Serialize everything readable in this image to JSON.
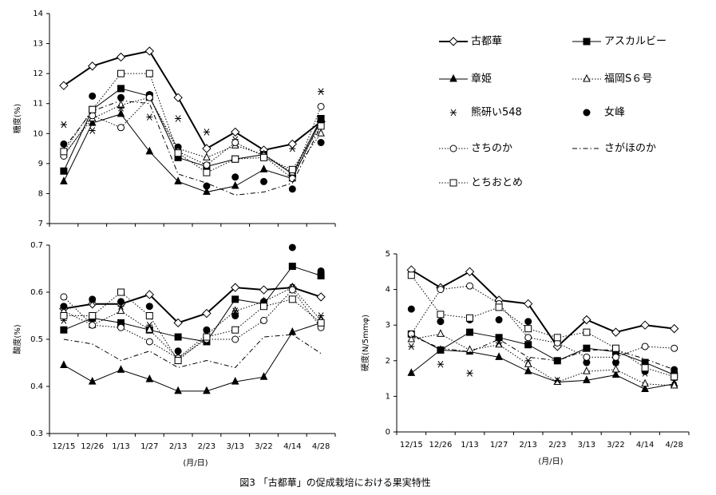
{
  "caption": "図3 「古都華」の促成栽培における果実特性",
  "chart_data": [
    {
      "type": "line",
      "y_label": "糖度(%)",
      "ylim": [
        7,
        14
      ],
      "yticks": [
        7,
        8,
        9,
        10,
        11,
        12,
        13,
        14
      ],
      "color": "#000000",
      "series": [
        {
          "name": "古都華",
          "marker": "diamond-open",
          "line": "bold",
          "values": [
            11.6,
            12.25,
            12.55,
            12.75,
            11.2,
            9.5,
            10.05,
            9.45,
            9.65,
            10.4
          ]
        },
        {
          "name": "アスカルビー",
          "marker": "square",
          "line": "solid",
          "values": [
            8.75,
            10.8,
            11.5,
            11.25,
            9.2,
            8.9,
            9.15,
            9.3,
            8.65,
            10.5
          ]
        },
        {
          "name": "章姫",
          "marker": "triangle",
          "line": "solid",
          "values": [
            8.4,
            10.35,
            10.65,
            9.4,
            8.4,
            8.05,
            8.25,
            8.8,
            8.5,
            10.45
          ]
        },
        {
          "name": "福岡S６号",
          "marker": "triangle-open",
          "line": "dotted",
          "values": [
            9.3,
            10.5,
            10.95,
            11.2,
            9.5,
            9.2,
            9.6,
            9.3,
            8.7,
            10.0
          ]
        },
        {
          "name": "熊研い548",
          "marker": "asterisk",
          "line": "none",
          "values": [
            10.3,
            10.1,
            10.85,
            10.55,
            10.5,
            10.05,
            9.8,
            9.3,
            9.5,
            11.4
          ]
        },
        {
          "name": "女峰",
          "marker": "circle",
          "line": "none",
          "values": [
            9.65,
            11.25,
            11.2,
            11.3,
            9.55,
            8.25,
            8.55,
            8.4,
            8.15,
            9.7
          ]
        },
        {
          "name": "さちのか",
          "marker": "circle-open",
          "line": "dotted",
          "values": [
            9.25,
            10.6,
            10.2,
            11.2,
            9.4,
            8.95,
            9.7,
            9.25,
            8.5,
            10.9
          ]
        },
        {
          "name": "さがほのか",
          "marker": "none",
          "line": "dashdot",
          "values": [
            9.5,
            10.75,
            11.1,
            11.0,
            8.65,
            8.35,
            7.95,
            8.05,
            8.35,
            10.25
          ]
        },
        {
          "name": "とちおとめ",
          "marker": "square-open",
          "line": "dotted",
          "values": [
            9.4,
            10.8,
            12.0,
            12.0,
            9.35,
            8.7,
            9.15,
            9.2,
            8.8,
            10.25
          ]
        }
      ]
    },
    {
      "type": "line",
      "y_label": "酸度(%)",
      "x_label": "(月/日)",
      "ylim": [
        0.3,
        0.7
      ],
      "yticks": [
        0.3,
        0.4,
        0.5,
        0.6,
        0.7
      ],
      "color": "#000000",
      "categories": [
        "12/15",
        "12/26",
        "1/13",
        "1/27",
        "2/13",
        "2/23",
        "3/13",
        "3/22",
        "4/14",
        "4/28"
      ],
      "series": [
        {
          "marker": "diamond-open",
          "line": "bold",
          "values": [
            0.565,
            0.575,
            0.575,
            0.595,
            0.535,
            0.555,
            0.61,
            0.605,
            0.61,
            0.59
          ]
        },
        {
          "marker": "square",
          "line": "solid",
          "values": [
            0.52,
            0.545,
            0.535,
            0.52,
            0.505,
            0.495,
            0.585,
            0.575,
            0.655,
            0.635
          ]
        },
        {
          "marker": "triangle",
          "line": "solid",
          "values": [
            0.445,
            0.41,
            0.435,
            0.415,
            0.39,
            0.39,
            0.41,
            0.42,
            0.515,
            0.535
          ]
        },
        {
          "marker": "triangle-open",
          "line": "dotted",
          "values": [
            0.56,
            0.53,
            0.56,
            0.52,
            0.46,
            0.51,
            0.56,
            0.58,
            0.61,
            0.54
          ]
        },
        {
          "marker": "asterisk",
          "line": "none",
          "values": [
            0.54,
            0.58,
            0.57,
            0.53,
            0.465,
            0.515,
            0.56,
            0.575,
            0.61,
            0.55
          ]
        },
        {
          "marker": "circle",
          "line": "none",
          "values": [
            0.57,
            0.585,
            0.58,
            0.57,
            0.475,
            0.52,
            0.55,
            0.58,
            0.695,
            0.645
          ]
        },
        {
          "marker": "circle-open",
          "line": "dotted",
          "values": [
            0.59,
            0.53,
            0.525,
            0.495,
            0.46,
            0.5,
            0.5,
            0.54,
            0.605,
            0.525
          ]
        },
        {
          "marker": "none",
          "line": "dashdot",
          "values": [
            0.5,
            0.49,
            0.455,
            0.475,
            0.44,
            0.455,
            0.44,
            0.505,
            0.51,
            0.47
          ]
        },
        {
          "marker": "square-open",
          "line": "dotted",
          "values": [
            0.55,
            0.55,
            0.6,
            0.55,
            0.455,
            0.505,
            0.52,
            0.57,
            0.585,
            0.535
          ]
        }
      ]
    },
    {
      "type": "line",
      "y_label": "硬度(N/5mmφ)",
      "x_label": "(月/日)",
      "ylim": [
        0,
        5
      ],
      "yticks": [
        0,
        1,
        2,
        3,
        4,
        5
      ],
      "color": "#000000",
      "categories": [
        "12/15",
        "12/26",
        "1/13",
        "1/27",
        "2/13",
        "2/23",
        "3/13",
        "3/22",
        "4/14",
        "4/28"
      ],
      "series": [
        {
          "marker": "diamond-open",
          "line": "bold",
          "values": [
            4.55,
            4.05,
            4.5,
            3.7,
            3.6,
            2.4,
            3.15,
            2.8,
            3.0,
            2.9
          ]
        },
        {
          "marker": "square",
          "line": "solid",
          "values": [
            2.75,
            2.3,
            2.8,
            2.65,
            2.45,
            2.0,
            2.35,
            2.25,
            1.95,
            1.6
          ]
        },
        {
          "marker": "triangle",
          "line": "solid",
          "values": [
            1.65,
            2.3,
            2.25,
            2.1,
            1.7,
            1.4,
            1.45,
            1.6,
            1.2,
            1.35
          ]
        },
        {
          "marker": "triangle-open",
          "line": "dotted",
          "values": [
            2.6,
            2.75,
            2.3,
            2.45,
            1.9,
            1.4,
            1.7,
            1.75,
            1.35,
            1.3
          ]
        },
        {
          "marker": "asterisk",
          "line": "none",
          "values": [
            2.4,
            1.9,
            1.65,
            2.5,
            2.0,
            1.45,
            2.05,
            1.95,
            1.65,
            1.45
          ]
        },
        {
          "marker": "circle",
          "line": "none",
          "values": [
            3.45,
            3.1,
            3.15,
            3.15,
            3.1,
            2.0,
            1.95,
            1.95,
            1.7,
            1.75
          ]
        },
        {
          "marker": "circle-open",
          "line": "dotted",
          "values": [
            2.75,
            4.0,
            4.1,
            3.6,
            2.65,
            2.5,
            2.1,
            2.1,
            2.4,
            2.35
          ]
        },
        {
          "marker": "none",
          "line": "dashdot",
          "values": [
            2.7,
            2.35,
            2.25,
            2.6,
            2.1,
            2.0,
            2.3,
            2.3,
            2.05,
            1.75
          ]
        },
        {
          "marker": "square-open",
          "line": "dotted",
          "values": [
            4.4,
            3.3,
            3.2,
            3.5,
            2.9,
            2.65,
            2.8,
            2.35,
            1.8,
            1.55
          ]
        }
      ]
    }
  ]
}
